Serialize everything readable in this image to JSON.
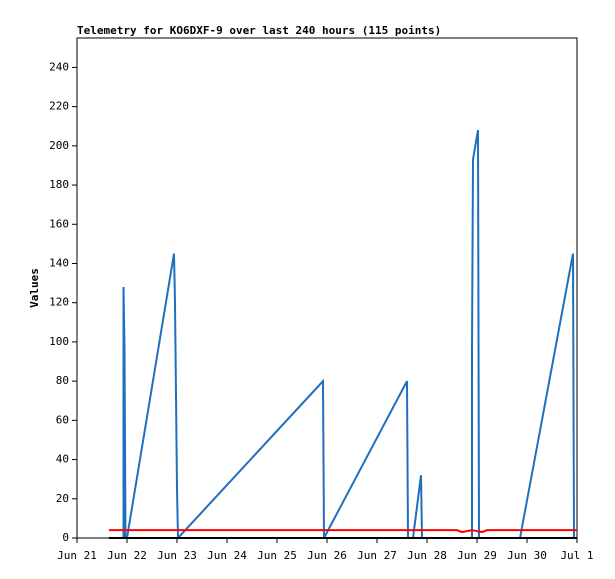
{
  "chart_data": {
    "type": "line",
    "title": "Telemetry for KO6DXF-9 over last 240 hours (115 points)",
    "y_label": "Values",
    "xlim": [
      0,
      10
    ],
    "xticks": [
      {
        "value": 0,
        "label": "Jun 21"
      },
      {
        "value": 1,
        "label": "Jun 22"
      },
      {
        "value": 2,
        "label": "Jun 23"
      },
      {
        "value": 3,
        "label": "Jun 24"
      },
      {
        "value": 4,
        "label": "Jun 25"
      },
      {
        "value": 5,
        "label": "Jun 26"
      },
      {
        "value": 6,
        "label": "Jun 27"
      },
      {
        "value": 7,
        "label": "Jun 28"
      },
      {
        "value": 8,
        "label": "Jun 29"
      },
      {
        "value": 9,
        "label": "Jun 30"
      },
      {
        "value": 10,
        "label": "Jul 1"
      }
    ],
    "ylim": [
      0,
      255
    ],
    "yticks": [
      0,
      20,
      40,
      60,
      80,
      100,
      120,
      140,
      160,
      180,
      200,
      220,
      240
    ],
    "series": [
      {
        "color": "#1f6fc0",
        "x": [
          0.93,
          0.93,
          0.95,
          0.97,
          1.0,
          1.94,
          1.96,
          1.98,
          2.0,
          2.02,
          4.92,
          4.94,
          6.6,
          6.62,
          6.72,
          6.88,
          6.9,
          7.9,
          7.9,
          7.92,
          8.02,
          8.04,
          8.86,
          9.92,
          9.94
        ],
        "values": [
          0,
          128,
          97,
          0,
          0,
          145,
          120,
          73,
          25,
          0,
          80,
          0,
          80,
          0,
          0,
          32,
          0,
          0,
          97,
          193,
          208,
          0,
          0,
          145,
          0
        ]
      },
      {
        "color": "#ff0000",
        "x": [
          0.64,
          7.6,
          7.7,
          7.9,
          8.1,
          8.2,
          10.0
        ],
        "values": [
          4,
          4,
          3,
          4,
          3,
          4,
          4
        ]
      },
      {
        "color": "#000000",
        "x": [
          0.64,
          10.0
        ],
        "values": [
          0,
          0
        ]
      }
    ]
  }
}
